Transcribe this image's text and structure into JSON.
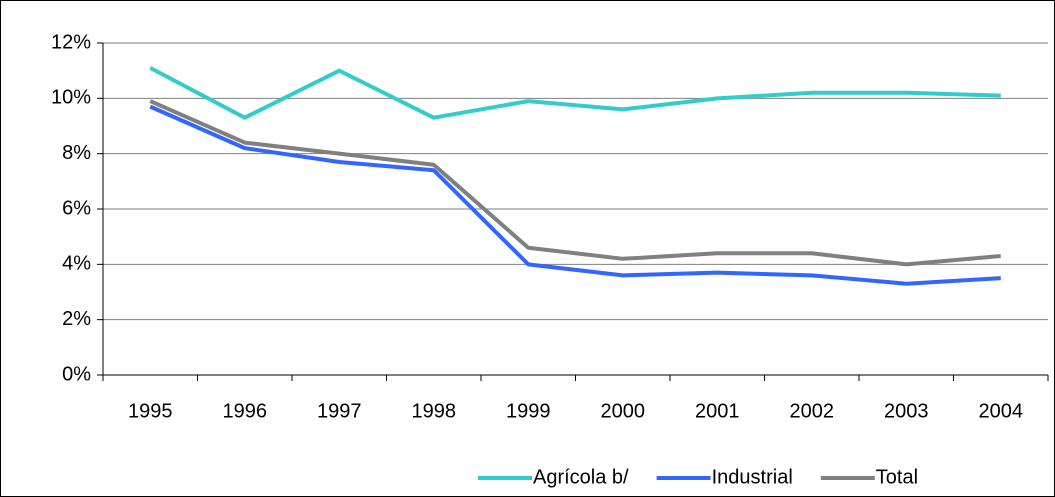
{
  "chart_data": {
    "type": "line",
    "categories": [
      "1995",
      "1996",
      "1997",
      "1998",
      "1999",
      "2000",
      "2001",
      "2002",
      "2003",
      "2004"
    ],
    "series": [
      {
        "name": "Agrícola b/",
        "color": "#33cccc",
        "values": [
          11.1,
          9.3,
          11.0,
          9.3,
          9.9,
          9.6,
          10.0,
          10.2,
          10.2,
          10.1
        ]
      },
      {
        "name": "Industrial",
        "color": "#3366ff",
        "values": [
          9.7,
          8.2,
          7.7,
          7.4,
          4.0,
          3.6,
          3.7,
          3.6,
          3.3,
          3.5
        ]
      },
      {
        "name": "Total",
        "color": "#808080",
        "values": [
          9.9,
          8.4,
          8.0,
          7.6,
          4.6,
          4.2,
          4.4,
          4.4,
          4.0,
          4.3
        ]
      }
    ],
    "ylim": [
      0,
      12
    ],
    "yticks": [
      {
        "value": 0,
        "label": "0%"
      },
      {
        "value": 2,
        "label": "2%"
      },
      {
        "value": 4,
        "label": "4%"
      },
      {
        "value": 6,
        "label": "6%"
      },
      {
        "value": 8,
        "label": "8%"
      },
      {
        "value": 10,
        "label": "10%"
      },
      {
        "value": 12,
        "label": "12%"
      }
    ],
    "grid": true,
    "legend": "bottom"
  }
}
